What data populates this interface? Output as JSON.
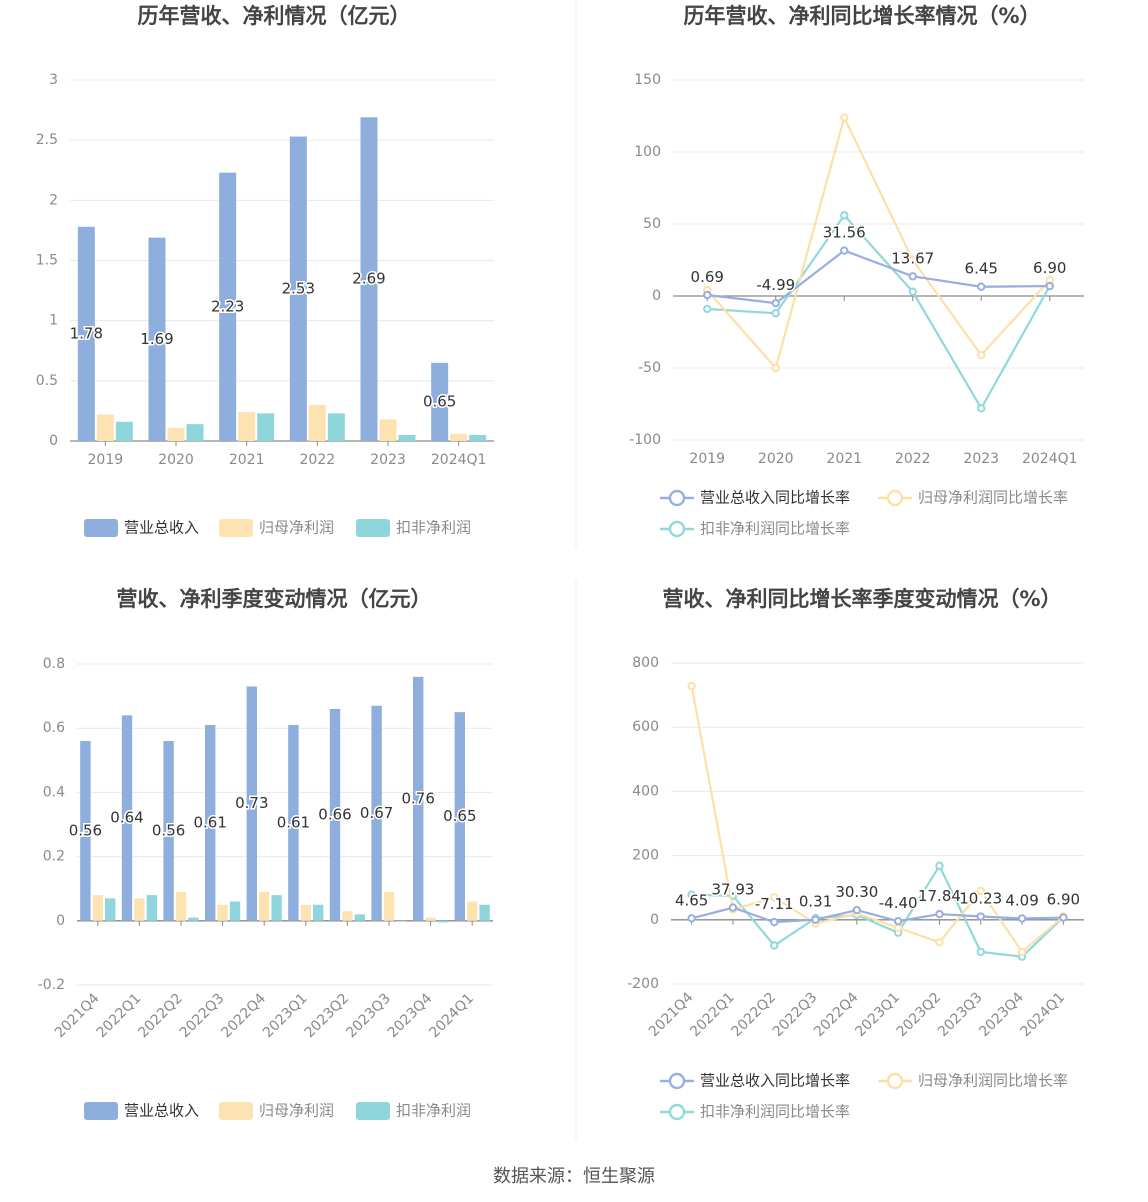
{
  "footer": {
    "source": "数据来源：恒生聚源"
  },
  "colors": {
    "revenue": "#8eaedd",
    "net_profit": "#fde3b2",
    "deducted_profit": "#8fd6dc",
    "revenue_line": "#98aee0",
    "net_line": "#fde0a6",
    "deducted_line": "#8fd9dc",
    "grid": "#e6e9f0",
    "axis_text": "#8a8a8a",
    "title": "#444444"
  },
  "chart_data": [
    {
      "type": "bar",
      "title": "历年营收、净利情况（亿元）",
      "categories": [
        "2019",
        "2020",
        "2021",
        "2022",
        "2023",
        "2024Q1"
      ],
      "ylim": [
        0,
        3
      ],
      "yticks": [
        "0",
        "0.5",
        "1",
        "1.5",
        "2",
        "2.5",
        "3"
      ],
      "series": [
        {
          "name": "营业总收入",
          "values": [
            1.78,
            1.69,
            2.23,
            2.53,
            2.69,
            0.65
          ],
          "labels": [
            "1.78",
            "1.69",
            "2.23",
            "2.53",
            "2.69",
            "0.65"
          ]
        },
        {
          "name": "归母净利润",
          "values": [
            0.22,
            0.11,
            0.24,
            0.3,
            0.18,
            0.06
          ]
        },
        {
          "name": "扣非净利润",
          "values": [
            0.16,
            0.14,
            0.23,
            0.23,
            0.05,
            0.05
          ]
        }
      ],
      "legend": "bottom",
      "grid": true
    },
    {
      "type": "line",
      "title": "历年营收、净利同比增长率情况（%）",
      "categories": [
        "2019",
        "2020",
        "2021",
        "2022",
        "2023",
        "2024Q1"
      ],
      "ylim": [
        -100,
        150
      ],
      "yticks": [
        "-100",
        "-50",
        "0",
        "50",
        "100",
        "150"
      ],
      "series": [
        {
          "name": "营业总收入同比增长率",
          "values": [
            0.69,
            -4.99,
            31.56,
            13.67,
            6.45,
            6.9
          ],
          "labels": [
            "0.69",
            "-4.99",
            "31.56",
            "13.67",
            "6.45",
            "6.90"
          ]
        },
        {
          "name": "归母净利润同比增长率",
          "values": [
            4,
            -50,
            124,
            25,
            -41,
            11
          ]
        },
        {
          "name": "扣非净利润同比增长率",
          "values": [
            -9,
            -12,
            56,
            3,
            -78,
            7
          ]
        }
      ],
      "legend": "bottom",
      "grid": true
    },
    {
      "type": "bar",
      "title": "营收、净利季度变动情况（亿元）",
      "categories": [
        "2021Q4",
        "2022Q1",
        "2022Q2",
        "2022Q3",
        "2022Q4",
        "2023Q1",
        "2023Q2",
        "2023Q3",
        "2023Q4",
        "2024Q1"
      ],
      "ylim": [
        -0.2,
        0.8
      ],
      "yticks": [
        "-0.2",
        "0",
        "0.2",
        "0.4",
        "0.6",
        "0.8"
      ],
      "series": [
        {
          "name": "营业总收入",
          "values": [
            0.56,
            0.64,
            0.56,
            0.61,
            0.73,
            0.61,
            0.66,
            0.67,
            0.76,
            0.65
          ],
          "labels": [
            "0.56",
            "0.64",
            "0.56",
            "0.61",
            "0.73",
            "0.61",
            "0.66",
            "0.67",
            "0.76",
            "0.65"
          ]
        },
        {
          "name": "归母净利润",
          "values": [
            0.08,
            0.07,
            0.09,
            0.05,
            0.09,
            0.05,
            0.03,
            0.09,
            0.01,
            0.06
          ]
        },
        {
          "name": "扣非净利润",
          "values": [
            0.07,
            0.08,
            0.01,
            0.06,
            0.08,
            0.05,
            0.02,
            0.0,
            -0.005,
            0.05
          ]
        }
      ],
      "legend": "bottom",
      "grid": true
    },
    {
      "type": "line",
      "title": "营收、净利同比增长率季度变动情况（%）",
      "categories": [
        "2021Q4",
        "2022Q1",
        "2022Q2",
        "2022Q3",
        "2022Q4",
        "2023Q1",
        "2023Q2",
        "2023Q3",
        "2023Q4",
        "2024Q1"
      ],
      "ylim": [
        -200,
        800
      ],
      "yticks": [
        "-200",
        "0",
        "200",
        "400",
        "600",
        "800"
      ],
      "series": [
        {
          "name": "营业总收入同比增长率",
          "values": [
            4.65,
            37.93,
            -7.11,
            0.31,
            30.3,
            -4.4,
            17.84,
            10.23,
            4.09,
            6.9
          ],
          "labels": [
            "4.65",
            "37.93",
            "-7.11",
            "0.31",
            "30.30",
            "-4.40",
            "17.84",
            "10.23",
            "4.09",
            "6.90"
          ]
        },
        {
          "name": "归母净利润同比增长率",
          "values": [
            728,
            32,
            70,
            -12,
            20,
            -25,
            -70,
            90,
            -100,
            10
          ]
        },
        {
          "name": "扣非净利润同比增长率",
          "values": [
            78,
            75,
            -80,
            5,
            15,
            -40,
            168,
            -100,
            -115,
            8
          ]
        }
      ],
      "legend": "bottom",
      "grid": true
    }
  ]
}
